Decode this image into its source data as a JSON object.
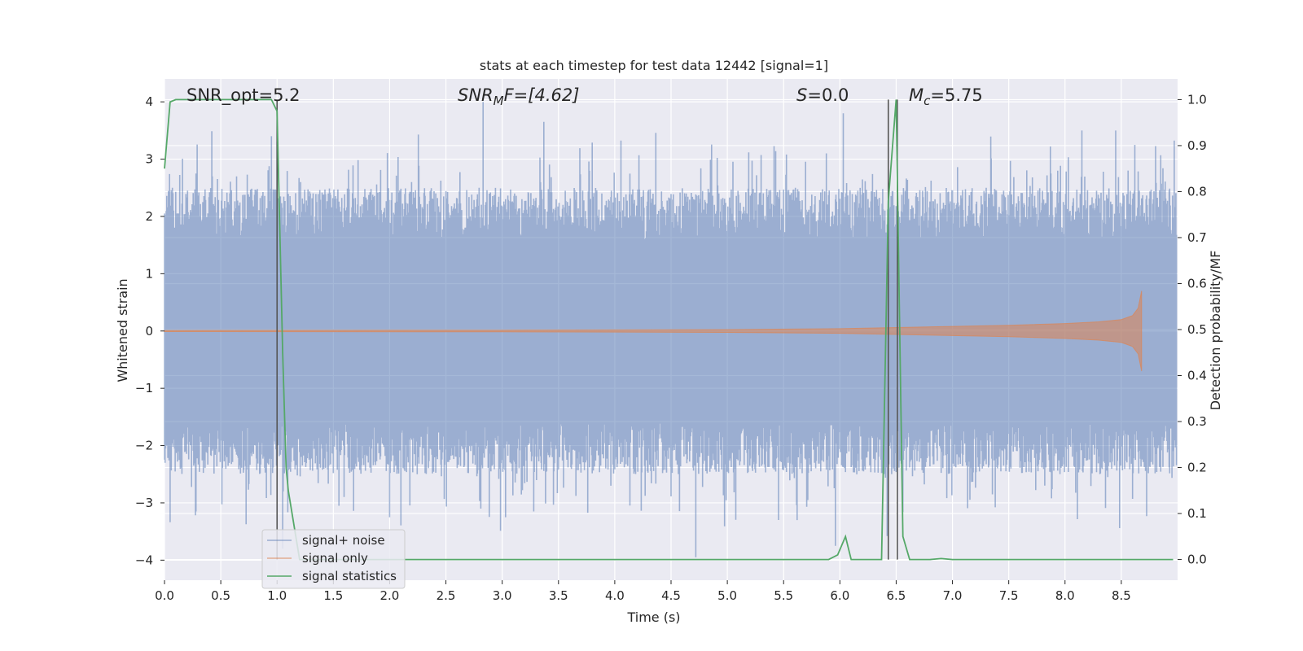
{
  "chart_data": {
    "type": "line",
    "title": "stats at each timestep for test data 12442 [signal=1]",
    "xlabel": "Time (s)",
    "ylabel": "Whitened strain",
    "ylabel_right": "Detection probability/MF",
    "xlim": [
      0.0,
      9.0
    ],
    "ylim": [
      -4.35,
      4.4
    ],
    "ylim_right": [
      -0.045,
      1.045
    ],
    "x_ticks": [
      "0.0",
      "0.5",
      "1.0",
      "1.5",
      "2.0",
      "2.5",
      "3.0",
      "3.5",
      "4.0",
      "4.5",
      "5.0",
      "5.5",
      "6.0",
      "6.5",
      "7.0",
      "7.5",
      "8.0",
      "8.5"
    ],
    "y_ticks": [
      "4",
      "3",
      "2",
      "1",
      "0",
      "−1",
      "−2",
      "−3",
      "−4"
    ],
    "y_ticks_right": [
      "1.0",
      "0.9",
      "0.8",
      "0.7",
      "0.6",
      "0.5",
      "0.4",
      "0.3",
      "0.2",
      "0.1",
      "0.0"
    ],
    "grid": true,
    "legend_position": "lower-left",
    "annotations": {
      "snr_opt": "SNR_opt=5.2",
      "snr_mf_main": "SNR",
      "snr_mf_sub": "M",
      "snr_mf_tail": "F=[4.62]",
      "s_main": "S",
      "s_tail": "=0.0",
      "mc_main": "M",
      "mc_sub": "c",
      "mc_tail": "=5.75"
    },
    "vertical_lines_x": [
      1.0,
      6.43,
      6.51
    ],
    "series": [
      {
        "name": "signal+ noise",
        "color": "#4c72b0",
        "axis": "left",
        "envelope": {
          "upper_typical": 1.6,
          "lower_typical": -1.6,
          "peak_max": 4.0,
          "peak_min": -3.95
        },
        "spikes": [
          [
            0.28,
            2.75
          ],
          [
            0.64,
            2.7
          ],
          [
            0.95,
            3.4
          ],
          [
            1.0,
            3.3
          ],
          [
            2.83,
            4.0
          ],
          [
            3.37,
            3.65
          ],
          [
            5.88,
            3.1
          ],
          [
            6.03,
            3.8
          ],
          [
            8.45,
            3.5
          ],
          [
            8.62,
            3.25
          ],
          [
            0.28,
            -3.15
          ],
          [
            1.05,
            -3.8
          ],
          [
            1.55,
            -3.05
          ],
          [
            2.0,
            -3.25
          ],
          [
            2.81,
            -3.1
          ],
          [
            3.03,
            -3.25
          ],
          [
            3.28,
            -3.15
          ],
          [
            4.72,
            -3.95
          ],
          [
            5.62,
            -3.3
          ],
          [
            5.96,
            -3.75
          ]
        ]
      },
      {
        "name": "signal only",
        "color": "#dd8452",
        "axis": "left",
        "x": [
          0.0,
          3.0,
          5.0,
          6.0,
          6.5,
          7.0,
          7.5,
          8.0,
          8.3,
          8.5,
          8.6,
          8.65,
          8.68
        ],
        "amp": [
          0.01,
          0.015,
          0.025,
          0.04,
          0.06,
          0.08,
          0.1,
          0.13,
          0.16,
          0.2,
          0.27,
          0.4,
          0.7
        ]
      },
      {
        "name": "signal statistics",
        "color": "#55a868",
        "axis": "right",
        "x": [
          0.0,
          0.05,
          0.1,
          0.95,
          1.0,
          1.05,
          1.08,
          1.1,
          1.2,
          1.25,
          5.9,
          5.98,
          6.05,
          6.1,
          6.37,
          6.43,
          6.5,
          6.56,
          6.62,
          6.8,
          6.9,
          7.0,
          8.96
        ],
        "y": [
          0.85,
          0.995,
          1.0,
          1.0,
          0.975,
          0.45,
          0.2,
          0.15,
          0.0,
          0.0,
          0.0,
          0.01,
          0.05,
          0.0,
          0.0,
          0.78,
          1.0,
          0.05,
          0.0,
          0.0,
          0.002,
          0.0,
          0.0
        ]
      }
    ]
  }
}
